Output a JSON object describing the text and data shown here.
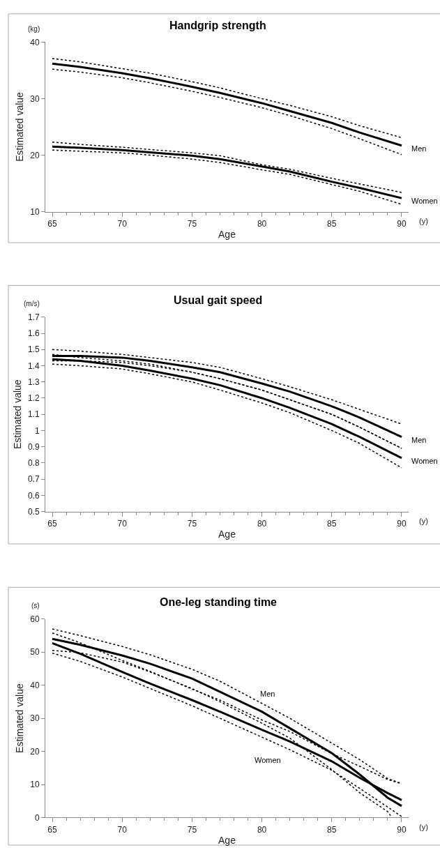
{
  "chart_data": [
    {
      "type": "line",
      "title": "Handgrip strength",
      "xlabel": "Age",
      "ylabel": "Estimated value",
      "annotations": [
        "(kg)",
        "(y)"
      ],
      "x": [
        65,
        67,
        70,
        72,
        75,
        77,
        80,
        82,
        85,
        87,
        90
      ],
      "xlim": [
        64.5,
        90.5
      ],
      "xticks": [
        65,
        70,
        75,
        80,
        85,
        90
      ],
      "ylim": [
        10,
        40
      ],
      "yticks": [
        10,
        20,
        30,
        40
      ],
      "grid": false,
      "legend": false,
      "line_style": "solid",
      "series": [
        {
          "name": "Men",
          "color": "#000000",
          "values": [
            36.2,
            35.6,
            34.5,
            33.6,
            32.1,
            31.0,
            29.2,
            27.8,
            25.7,
            24.0,
            21.7
          ]
        },
        {
          "color": "#000000",
          "line_style": "dotted",
          "values": [
            37.1,
            36.5,
            35.3,
            34.5,
            33.0,
            31.9,
            30.0,
            28.8,
            26.8,
            25.2,
            23.1
          ]
        },
        {
          "color": "#000000",
          "line_style": "dotted",
          "values": [
            35.2,
            34.7,
            33.7,
            32.8,
            31.3,
            30.2,
            28.4,
            27.0,
            24.7,
            22.9,
            20.1
          ]
        },
        {
          "name": "Women",
          "color": "#000000",
          "values": [
            21.5,
            21.3,
            20.9,
            20.5,
            19.9,
            19.3,
            18.0,
            17.1,
            15.3,
            14.2,
            12.4
          ]
        },
        {
          "color": "#000000",
          "line_style": "dotted",
          "values": [
            22.3,
            21.9,
            21.4,
            21.0,
            20.4,
            19.9,
            18.3,
            17.5,
            15.9,
            14.9,
            13.4
          ]
        },
        {
          "color": "#000000",
          "line_style": "dotted",
          "values": [
            20.9,
            20.7,
            20.4,
            20.0,
            19.3,
            18.7,
            17.4,
            16.6,
            14.8,
            13.6,
            11.3
          ]
        }
      ]
    },
    {
      "type": "line",
      "title": "Usual gait speed",
      "xlabel": "Age",
      "ylabel": "Estimated value",
      "annotations": [
        "(m/s)",
        "(y)"
      ],
      "x": [
        65,
        67,
        70,
        72,
        75,
        77,
        80,
        82,
        85,
        87,
        90
      ],
      "xlim": [
        64.5,
        90.5
      ],
      "xticks": [
        65,
        70,
        75,
        80,
        85,
        90
      ],
      "ylim": [
        0.5,
        1.7
      ],
      "yticks": [
        0.5,
        0.6,
        0.7,
        0.8,
        0.9,
        1,
        1.1,
        1.2,
        1.3,
        1.4,
        1.5,
        1.6,
        1.7
      ],
      "grid": false,
      "legend": false,
      "line_style": "solid",
      "series": [
        {
          "name": "Men",
          "color": "#000000",
          "values": [
            1.46,
            1.46,
            1.45,
            1.43,
            1.39,
            1.36,
            1.29,
            1.24,
            1.15,
            1.08,
            0.96
          ]
        },
        {
          "color": "#000000",
          "line_style": "dotted",
          "values": [
            1.5,
            1.49,
            1.47,
            1.45,
            1.42,
            1.39,
            1.32,
            1.27,
            1.19,
            1.13,
            1.04
          ]
        },
        {
          "color": "#000000",
          "line_style": "dotted",
          "values": [
            1.43,
            1.43,
            1.42,
            1.4,
            1.36,
            1.32,
            1.25,
            1.19,
            1.1,
            1.02,
            0.89
          ]
        },
        {
          "name": "Women",
          "color": "#000000",
          "values": [
            1.44,
            1.43,
            1.4,
            1.37,
            1.32,
            1.28,
            1.2,
            1.14,
            1.04,
            0.96,
            0.83
          ]
        },
        {
          "color": "#000000",
          "line_style": "dotted",
          "values": [
            1.47,
            1.45,
            1.43,
            1.41,
            1.36,
            1.32,
            1.25,
            1.19,
            1.1,
            1.02,
            0.89
          ]
        },
        {
          "color": "#000000",
          "line_style": "dotted",
          "values": [
            1.41,
            1.4,
            1.38,
            1.35,
            1.3,
            1.25,
            1.17,
            1.11,
            1.0,
            0.92,
            0.77
          ]
        }
      ]
    },
    {
      "type": "line",
      "title": "One-leg standing time",
      "xlabel": "Age",
      "ylabel": "Estimated value",
      "annotations": [
        "(s)",
        "(y)"
      ],
      "x": [
        65,
        67,
        70,
        72,
        75,
        77,
        80,
        82,
        85,
        87,
        89,
        90
      ],
      "xlim": [
        64.5,
        90.5
      ],
      "xticks": [
        65,
        70,
        75,
        80,
        85,
        90
      ],
      "ylim": [
        0,
        60
      ],
      "yticks": [
        0,
        10,
        20,
        30,
        40,
        50,
        60
      ],
      "grid": false,
      "legend": false,
      "line_style": "solid",
      "series": [
        {
          "name": "Men",
          "color": "#000000",
          "values": [
            54,
            52.2,
            49,
            46.5,
            42,
            38,
            32,
            27,
            19.5,
            13,
            6,
            3.5
          ]
        },
        {
          "color": "#000000",
          "line_style": "dotted",
          "values": [
            57,
            55,
            51.7,
            49.2,
            44.8,
            41.2,
            34.5,
            30,
            22.5,
            17.5,
            11.8,
            10.3
          ]
        },
        {
          "color": "#000000",
          "line_style": "dotted",
          "x": [
            65,
            67,
            70,
            72,
            75,
            77,
            80,
            82,
            85,
            87,
            89,
            89.3
          ],
          "values": [
            50.5,
            49.8,
            47,
            44,
            39,
            35,
            28.5,
            24,
            14.5,
            7.5,
            1.8,
            0
          ]
        },
        {
          "name": "Women",
          "color": "#000000",
          "values": [
            52.7,
            49.5,
            44,
            40.5,
            35.5,
            32,
            26.5,
            23,
            17,
            12,
            7.4,
            5.3
          ]
        },
        {
          "color": "#000000",
          "line_style": "dotted",
          "values": [
            55.8,
            52.8,
            47.5,
            44.2,
            38.8,
            35.5,
            29.5,
            26,
            19.3,
            15.5,
            11.5,
            10.2
          ]
        },
        {
          "color": "#000000",
          "line_style": "dotted",
          "values": [
            49.7,
            47.2,
            42.5,
            39,
            33.8,
            30,
            24.3,
            20.5,
            14.3,
            8.8,
            3.2,
            0.3
          ]
        }
      ]
    }
  ]
}
